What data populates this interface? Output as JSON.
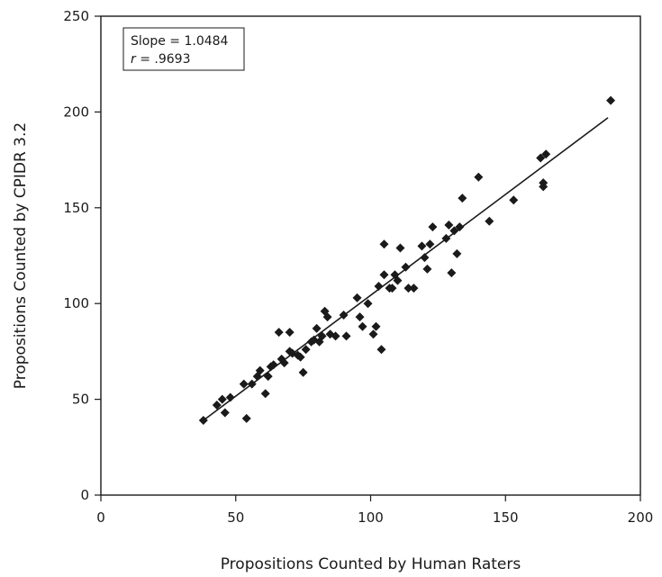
{
  "chart_data": {
    "type": "scatter",
    "xlabel": "Propositions Counted by Human Raters",
    "ylabel": "Propositions Counted by CPIDR 3.2",
    "xlim": [
      0,
      200
    ],
    "ylim": [
      0,
      250
    ],
    "xticks": [
      0,
      50,
      100,
      150,
      200
    ],
    "yticks": [
      0,
      50,
      100,
      150,
      200,
      250
    ],
    "grid": false,
    "marker": "diamond",
    "marker_color": "#1a1a1a",
    "annotation": {
      "line1": "Slope = 1.0484",
      "line2_italic": "r",
      "line2_rest": " = .9693"
    },
    "fit_line": {
      "x": [
        38,
        188
      ],
      "y": [
        39,
        197
      ]
    },
    "points": [
      {
        "x": 38,
        "y": 39
      },
      {
        "x": 43,
        "y": 47
      },
      {
        "x": 45,
        "y": 50
      },
      {
        "x": 46,
        "y": 43
      },
      {
        "x": 48,
        "y": 51
      },
      {
        "x": 53,
        "y": 58
      },
      {
        "x": 54,
        "y": 40
      },
      {
        "x": 56,
        "y": 58
      },
      {
        "x": 58,
        "y": 62
      },
      {
        "x": 59,
        "y": 65
      },
      {
        "x": 61,
        "y": 53
      },
      {
        "x": 62,
        "y": 62
      },
      {
        "x": 63,
        "y": 67
      },
      {
        "x": 64,
        "y": 68
      },
      {
        "x": 66,
        "y": 85
      },
      {
        "x": 67,
        "y": 71
      },
      {
        "x": 68,
        "y": 69
      },
      {
        "x": 70,
        "y": 85
      },
      {
        "x": 70,
        "y": 75
      },
      {
        "x": 71,
        "y": 74
      },
      {
        "x": 73,
        "y": 73
      },
      {
        "x": 74,
        "y": 72
      },
      {
        "x": 75,
        "y": 64
      },
      {
        "x": 76,
        "y": 76
      },
      {
        "x": 78,
        "y": 80
      },
      {
        "x": 79,
        "y": 81
      },
      {
        "x": 80,
        "y": 87
      },
      {
        "x": 81,
        "y": 80
      },
      {
        "x": 82,
        "y": 83
      },
      {
        "x": 83,
        "y": 96
      },
      {
        "x": 84,
        "y": 93
      },
      {
        "x": 85,
        "y": 84
      },
      {
        "x": 87,
        "y": 83
      },
      {
        "x": 90,
        "y": 94
      },
      {
        "x": 91,
        "y": 83
      },
      {
        "x": 95,
        "y": 103
      },
      {
        "x": 96,
        "y": 93
      },
      {
        "x": 97,
        "y": 88
      },
      {
        "x": 99,
        "y": 100
      },
      {
        "x": 101,
        "y": 84
      },
      {
        "x": 102,
        "y": 88
      },
      {
        "x": 103,
        "y": 109
      },
      {
        "x": 104,
        "y": 76
      },
      {
        "x": 105,
        "y": 131
      },
      {
        "x": 105,
        "y": 115
      },
      {
        "x": 107,
        "y": 108
      },
      {
        "x": 108,
        "y": 108
      },
      {
        "x": 109,
        "y": 115
      },
      {
        "x": 110,
        "y": 112
      },
      {
        "x": 111,
        "y": 129
      },
      {
        "x": 113,
        "y": 119
      },
      {
        "x": 114,
        "y": 108
      },
      {
        "x": 116,
        "y": 108
      },
      {
        "x": 119,
        "y": 130
      },
      {
        "x": 120,
        "y": 124
      },
      {
        "x": 121,
        "y": 118
      },
      {
        "x": 122,
        "y": 131
      },
      {
        "x": 123,
        "y": 140
      },
      {
        "x": 128,
        "y": 134
      },
      {
        "x": 129,
        "y": 141
      },
      {
        "x": 130,
        "y": 116
      },
      {
        "x": 131,
        "y": 138
      },
      {
        "x": 132,
        "y": 126
      },
      {
        "x": 133,
        "y": 140
      },
      {
        "x": 134,
        "y": 155
      },
      {
        "x": 140,
        "y": 166
      },
      {
        "x": 144,
        "y": 143
      },
      {
        "x": 153,
        "y": 154
      },
      {
        "x": 163,
        "y": 176
      },
      {
        "x": 164,
        "y": 163
      },
      {
        "x": 164,
        "y": 161
      },
      {
        "x": 165,
        "y": 178
      },
      {
        "x": 189,
        "y": 206
      }
    ]
  }
}
